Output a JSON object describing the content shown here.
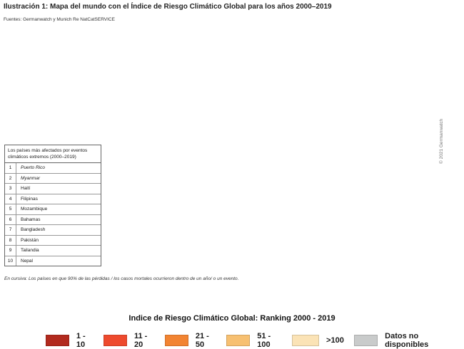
{
  "header": {
    "title": "Ilustración 1: Mapa del mundo con el Índice de Riesgo Climático Global para los años 2000–2019",
    "sources": "Fuentes: Germanwatch y Munich Re NatCatSERVICE"
  },
  "ranking_table": {
    "caption": "Los países más afectados por eventos climáticos extremos (2000–2019)",
    "rows": [
      {
        "rank": "1",
        "country": "Puerto Rico",
        "italic": true
      },
      {
        "rank": "2",
        "country": "Myanmar",
        "italic": true
      },
      {
        "rank": "3",
        "country": "Haití",
        "italic": false
      },
      {
        "rank": "4",
        "country": "Filipinas",
        "italic": false
      },
      {
        "rank": "5",
        "country": "Mozambique",
        "italic": false
      },
      {
        "rank": "6",
        "country": "Bahamas",
        "italic": false
      },
      {
        "rank": "7",
        "country": "Bangladesh",
        "italic": false
      },
      {
        "rank": "8",
        "country": "Pakistán",
        "italic": false
      },
      {
        "rank": "9",
        "country": "Tailandia",
        "italic": false
      },
      {
        "rank": "10",
        "country": "Nepal",
        "italic": false
      }
    ]
  },
  "note": "En cursiva: Los países en que 90% de las pérdidas / los casos mortales ocurrieron dentro de un año/ o un evento.",
  "copyright": "© 2021 Germanwatch",
  "legend": {
    "title": "Indice de Riesgo Climático Global: Ranking 2000 - 2019",
    "items": [
      {
        "label": "1 - 10",
        "color": "#b22a1e"
      },
      {
        "label": "11 - 20",
        "color": "#ee4a2d"
      },
      {
        "label": "21 - 50",
        "color": "#f28432"
      },
      {
        "label": "51 - 100",
        "color": "#f7c071"
      },
      {
        "label": ">100",
        "color": "#fbe3b6"
      },
      {
        "label": "Datos no disponibles",
        "color": "#c9cbcb"
      }
    ]
  }
}
